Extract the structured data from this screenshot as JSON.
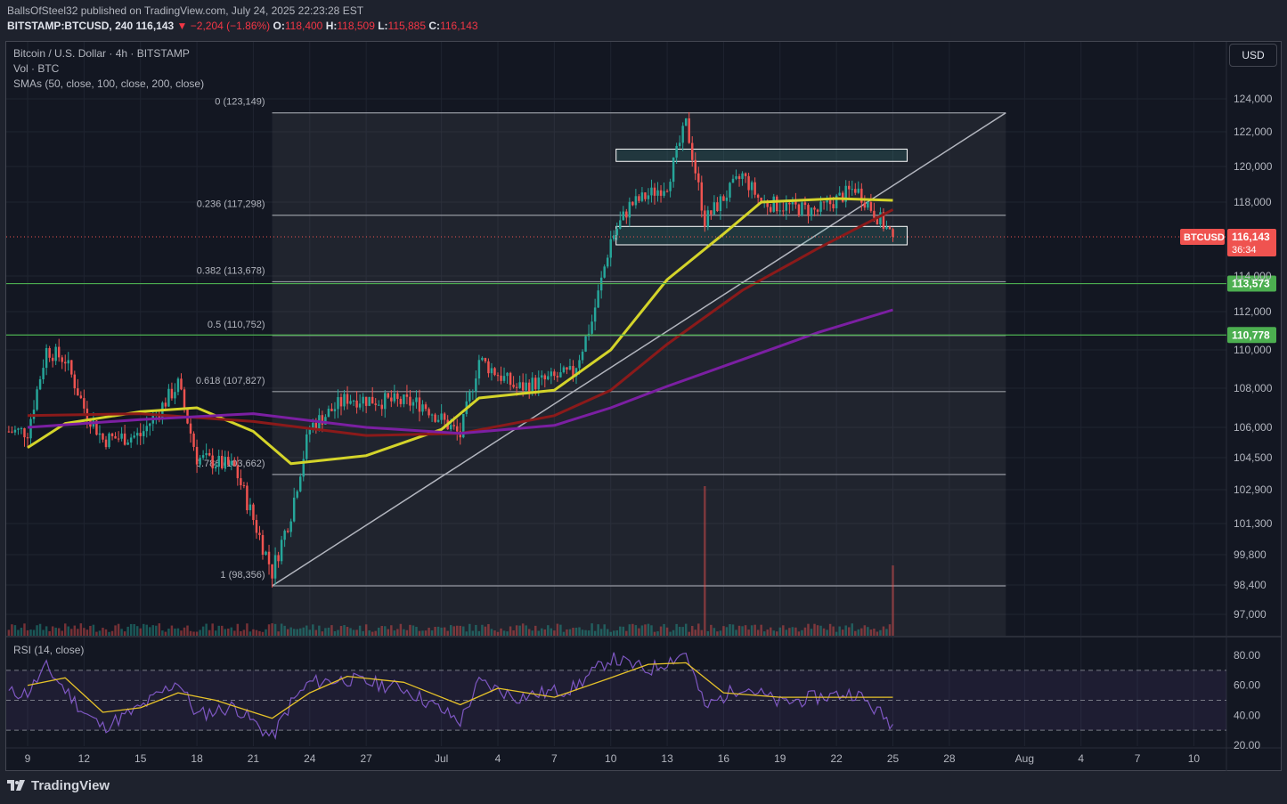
{
  "header": {
    "line1": "BallsOfSteel32 published on TradingView.com, July 24, 2025 22:23:28 EST",
    "author": "BallsOfSteel32",
    "symbol": "BITSTAMP:BTCUSD, 240",
    "last": "116,143",
    "change": "−2,204 (−1.86%)",
    "o_label": "O:",
    "o": "118,400",
    "h_label": "H:",
    "h": "118,509",
    "l_label": "L:",
    "l": "115,885",
    "c_label": "C:",
    "c": "116,143"
  },
  "legend": {
    "title": "Bitcoin / U.S. Dollar · 4h · BITSTAMP",
    "vol": "Vol · BTC",
    "sma": "SMAs (50, close, 100, close, 200, close)"
  },
  "rsi_label": "RSI (14, close)",
  "currency_button": "USD",
  "footer": {
    "brand": "TradingView"
  },
  "colors": {
    "bg": "#131722",
    "up": "#26a69a",
    "down": "#ef5350",
    "sma50": "#d4d42a",
    "sma100": "#8b1a1a",
    "sma200": "#7b1fa2",
    "rsi": "#7e57c2",
    "rsi_ma": "#e6c229",
    "hline": "#4caf50"
  },
  "chart_data": [
    {
      "type": "candlestick",
      "title": "Bitcoin / U.S. Dollar · 4h · BITSTAMP",
      "interval": "4h",
      "x_ticks": [
        "9",
        "12",
        "15",
        "18",
        "21",
        "24",
        "27",
        "Jul",
        "4",
        "7",
        "10",
        "13",
        "16",
        "19",
        "22",
        "25",
        "28",
        "Aug",
        "4",
        "7",
        "10"
      ],
      "y_ticks": [
        "124,000",
        "122,000",
        "120,000",
        "118,000",
        "114,000",
        "112,000",
        "110,000",
        "108,000",
        "106,000",
        "104,500",
        "102,900",
        "101,300",
        "99,800",
        "98,400",
        "97,000"
      ],
      "y_range": [
        96000,
        125500
      ],
      "last_price": 116143,
      "last_price_label": "116,143",
      "last_price_tag": "BTCUSD",
      "countdown": "36:34",
      "approx_close_path": [
        {
          "x": "Jun 9",
          "close": 105800
        },
        {
          "x": "Jun 10",
          "close": 110000
        },
        {
          "x": "Jun 11",
          "close": 109500
        },
        {
          "x": "Jun 12",
          "close": 107000
        },
        {
          "x": "Jun 13",
          "close": 105400
        },
        {
          "x": "Jun 15",
          "close": 105600
        },
        {
          "x": "Jun 17",
          "close": 108200
        },
        {
          "x": "Jun 18",
          "close": 104500
        },
        {
          "x": "Jun 20",
          "close": 104000
        },
        {
          "x": "Jun 22",
          "close": 99000
        },
        {
          "x": "Jun 23",
          "close": 101800
        },
        {
          "x": "Jun 24",
          "close": 106000
        },
        {
          "x": "Jun 26",
          "close": 107500
        },
        {
          "x": "Jun 30",
          "close": 107200
        },
        {
          "x": "Jul 2",
          "close": 105600
        },
        {
          "x": "Jul 3",
          "close": 109500
        },
        {
          "x": "Jul 5",
          "close": 108000
        },
        {
          "x": "Jul 8",
          "close": 108800
        },
        {
          "x": "Jul 9",
          "close": 111500
        },
        {
          "x": "Jul 10",
          "close": 116000
        },
        {
          "x": "Jul 11",
          "close": 117800
        },
        {
          "x": "Jul 13",
          "close": 119000
        },
        {
          "x": "Jul 14",
          "close": 122500
        },
        {
          "x": "Jul 15",
          "close": 117000
        },
        {
          "x": "Jul 17",
          "close": 119500
        },
        {
          "x": "Jul 18",
          "close": 118000
        },
        {
          "x": "Jul 21",
          "close": 117500
        },
        {
          "x": "Jul 23",
          "close": 118800
        },
        {
          "x": "Jul 25",
          "close": 116143
        }
      ],
      "sma": [
        {
          "name": "SMA 50",
          "color": "#d4d42a",
          "points": [
            {
              "x": "Jun 9",
              "y": 105000
            },
            {
              "x": "Jun 11",
              "y": 106200
            },
            {
              "x": "Jun 15",
              "y": 106800
            },
            {
              "x": "Jun 18",
              "y": 107000
            },
            {
              "x": "Jun 21",
              "y": 105800
            },
            {
              "x": "Jun 23",
              "y": 104200
            },
            {
              "x": "Jun 27",
              "y": 104600
            },
            {
              "x": "Jul 1",
              "y": 105900
            },
            {
              "x": "Jul 3",
              "y": 107500
            },
            {
              "x": "Jul 7",
              "y": 107900
            },
            {
              "x": "Jul 10",
              "y": 110000
            },
            {
              "x": "Jul 13",
              "y": 113800
            },
            {
              "x": "Jul 16",
              "y": 116300
            },
            {
              "x": "Jul 18",
              "y": 118000
            },
            {
              "x": "Jul 22",
              "y": 118200
            },
            {
              "x": "Jul 25",
              "y": 118100
            }
          ]
        },
        {
          "name": "SMA 100",
          "color": "#8b1a1a",
          "points": [
            {
              "x": "Jun 9",
              "y": 106600
            },
            {
              "x": "Jun 15",
              "y": 106700
            },
            {
              "x": "Jun 21",
              "y": 106300
            },
            {
              "x": "Jun 27",
              "y": 105600
            },
            {
              "x": "Jul 2",
              "y": 105700
            },
            {
              "x": "Jul 7",
              "y": 106600
            },
            {
              "x": "Jul 10",
              "y": 107900
            },
            {
              "x": "Jul 13",
              "y": 110300
            },
            {
              "x": "Jul 17",
              "y": 113200
            },
            {
              "x": "Jul 21",
              "y": 115500
            },
            {
              "x": "Jul 25",
              "y": 117600
            }
          ]
        },
        {
          "name": "SMA 200",
          "color": "#7b1fa2",
          "points": [
            {
              "x": "Jun 9",
              "y": 106000
            },
            {
              "x": "Jun 15",
              "y": 106400
            },
            {
              "x": "Jun 21",
              "y": 106700
            },
            {
              "x": "Jun 27",
              "y": 106000
            },
            {
              "x": "Jul 2",
              "y": 105700
            },
            {
              "x": "Jul 7",
              "y": 106100
            },
            {
              "x": "Jul 10",
              "y": 107000
            },
            {
              "x": "Jul 13",
              "y": 108100
            },
            {
              "x": "Jul 17",
              "y": 109500
            },
            {
              "x": "Jul 21",
              "y": 110900
            },
            {
              "x": "Jul 25",
              "y": 112100
            }
          ]
        }
      ],
      "fibonacci": [
        {
          "level": "0",
          "price": 123149,
          "label": "0 (123,149)"
        },
        {
          "level": "0.236",
          "price": 117298,
          "label": "0.236 (117,298)"
        },
        {
          "level": "0.382",
          "price": 113678,
          "label": "0.382 (113,678)"
        },
        {
          "level": "0.5",
          "price": 110752,
          "label": "0.5 (110,752)"
        },
        {
          "level": "0.618",
          "price": 107827,
          "label": "0.618 (107,827)"
        },
        {
          "level": "0.786",
          "price": 103662,
          "label": "0.786 (103,662)"
        },
        {
          "level": "1",
          "price": 98356,
          "label": "1 (98,356)"
        }
      ],
      "horizontal_lines": [
        {
          "price": 113573,
          "label": "113,573",
          "color": "#4caf50"
        },
        {
          "price": 110778,
          "label": "110,778",
          "color": "#4caf50"
        }
      ],
      "rectangles": [
        {
          "from": "Jul 10",
          "to": "Jul 25",
          "top": 121000,
          "bottom": 120500
        },
        {
          "from": "Jul 10",
          "to": "Jul 25",
          "top": 116700,
          "bottom": 115900
        }
      ],
      "trend_line": {
        "from": {
          "x": "Jun 22",
          "y": 98356
        },
        "to": {
          "x": "Jul 31",
          "y": 123149
        }
      },
      "volume_spikes": [
        {
          "x": "Jul 15",
          "relative": 1.0
        },
        {
          "x": "Jul 25",
          "relative": 0.47
        }
      ]
    },
    {
      "type": "line",
      "title": "RSI (14, close)",
      "y_ticks": [
        "80.00",
        "60.00",
        "40.00",
        "20.00"
      ],
      "y_range": [
        18,
        86
      ],
      "bands": [
        70,
        50,
        30
      ],
      "series": [
        {
          "name": "RSI",
          "color": "#7e57c2",
          "points": [
            {
              "x": "Jun 9",
              "y": 55
            },
            {
              "x": "Jun 10",
              "y": 72
            },
            {
              "x": "Jun 12",
              "y": 42
            },
            {
              "x": "Jun 13",
              "y": 32
            },
            {
              "x": "Jun 15",
              "y": 45
            },
            {
              "x": "Jun 17",
              "y": 63
            },
            {
              "x": "Jun 18",
              "y": 40
            },
            {
              "x": "Jun 20",
              "y": 46
            },
            {
              "x": "Jun 22",
              "y": 25
            },
            {
              "x": "Jun 23",
              "y": 48
            },
            {
              "x": "Jun 24",
              "y": 62
            },
            {
              "x": "Jun 26",
              "y": 64
            },
            {
              "x": "Jun 29",
              "y": 58
            },
            {
              "x": "Jul 2",
              "y": 36
            },
            {
              "x": "Jul 3",
              "y": 62
            },
            {
              "x": "Jul 5",
              "y": 52
            },
            {
              "x": "Jul 8",
              "y": 58
            },
            {
              "x": "Jul 10",
              "y": 78
            },
            {
              "x": "Jul 12",
              "y": 70
            },
            {
              "x": "Jul 14",
              "y": 82
            },
            {
              "x": "Jul 15",
              "y": 45
            },
            {
              "x": "Jul 17",
              "y": 60
            },
            {
              "x": "Jul 19",
              "y": 48
            },
            {
              "x": "Jul 21",
              "y": 52
            },
            {
              "x": "Jul 23",
              "y": 55
            },
            {
              "x": "Jul 25",
              "y": 34
            }
          ]
        },
        {
          "name": "RSI-based MA",
          "color": "#e6c229",
          "points": [
            {
              "x": "Jun 9",
              "y": 60
            },
            {
              "x": "Jun 11",
              "y": 65
            },
            {
              "x": "Jun 13",
              "y": 42
            },
            {
              "x": "Jun 15",
              "y": 45
            },
            {
              "x": "Jun 17",
              "y": 55
            },
            {
              "x": "Jun 19",
              "y": 50
            },
            {
              "x": "Jun 22",
              "y": 38
            },
            {
              "x": "Jun 24",
              "y": 55
            },
            {
              "x": "Jun 26",
              "y": 66
            },
            {
              "x": "Jun 29",
              "y": 62
            },
            {
              "x": "Jul 2",
              "y": 47
            },
            {
              "x": "Jul 4",
              "y": 58
            },
            {
              "x": "Jul 7",
              "y": 52
            },
            {
              "x": "Jul 10",
              "y": 65
            },
            {
              "x": "Jul 12",
              "y": 74
            },
            {
              "x": "Jul 14",
              "y": 75
            },
            {
              "x": "Jul 16",
              "y": 55
            },
            {
              "x": "Jul 19",
              "y": 52
            },
            {
              "x": "Jul 22",
              "y": 52
            },
            {
              "x": "Jul 25",
              "y": 52
            }
          ]
        }
      ]
    }
  ]
}
